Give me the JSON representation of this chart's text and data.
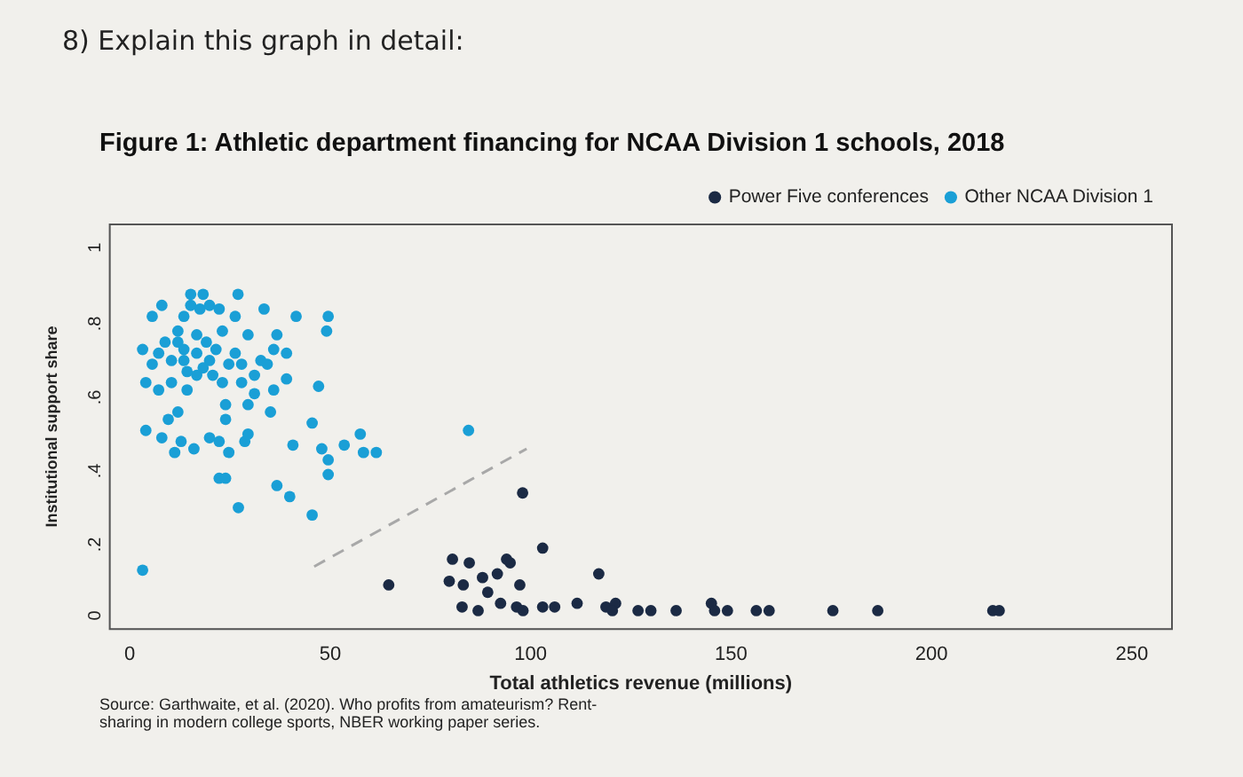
{
  "chart_data": {
    "type": "scatter",
    "title": "Figure 1: Athletic department financing for NCAA Division 1 schools, 2018",
    "xlabel": "Total athletics revenue (millions)",
    "ylabel": "Institutional support share",
    "annotations": [
      "8) Explain this graph in detail:",
      "Source: Garthwaite, et al. (2020). Who profits from amateurism? Rent-sharing in modern college sports, NBER working paper series."
    ],
    "legend": "top right",
    "marker": "circle",
    "xlim": [
      -5,
      260
    ],
    "xticks": [
      0,
      50,
      100,
      150,
      200,
      250
    ],
    "ylim": [
      -0.05,
      1.05
    ],
    "yticks": [
      0,
      {
        "value": 0.2,
        "label": ".2"
      },
      {
        "value": 0.4,
        "label": ".4"
      },
      {
        "value": 0.6,
        "label": ".6"
      },
      {
        "value": 0.8,
        "label": ".8"
      },
      1
    ],
    "series": [
      {
        "name": "Power Five conferences",
        "color": "#1b2a44",
        "x": [
          98,
          64.6,
          103,
          84.7,
          94.9,
          117,
          79.7,
          83.2,
          88,
          91.7,
          97.3,
          89.3,
          82.9,
          86.9,
          92.5,
          96.5,
          98.1,
          103,
          106,
          111.6,
          118.8,
          121.2,
          120.4,
          126.8,
          130,
          136.3,
          145.1,
          145.9,
          149.1,
          156.3,
          159.5,
          175.4,
          186.6,
          215.3,
          216.9,
          80.5,
          94
        ],
        "values": [
          0.32,
          0.07,
          0.17,
          0.13,
          0.13,
          0.1,
          0.08,
          0.07,
          0.09,
          0.1,
          0.07,
          0.05,
          0.01,
          0,
          0.02,
          0.01,
          0,
          0.01,
          0.01,
          0.02,
          0.01,
          0.02,
          0,
          0,
          0,
          0,
          0.02,
          0,
          0,
          0,
          0,
          0,
          0,
          0,
          0,
          0.14,
          0.14
        ]
      },
      {
        "name": "Other NCAA Division 1",
        "color": "#1a9fd6",
        "x": [
          3.2,
          84.5,
          27,
          15.2,
          18.3,
          5.6,
          8,
          33.5,
          41.5,
          49.5,
          49.1,
          3.2,
          5.6,
          4,
          7.2,
          10.4,
          12,
          13.5,
          16.7,
          19.9,
          23.1,
          26.3,
          29.5,
          32.7,
          35.9,
          39.1,
          39.1,
          36.7,
          27.9,
          31.1,
          29.5,
          35.1,
          47.1,
          23.1,
          16.7,
          14.3,
          12,
          9.6,
          4,
          8,
          12.8,
          16,
          11.2,
          19.9,
          22.3,
          24.7,
          28.7,
          29.5,
          23.9,
          23.9,
          22.3,
          23.9,
          27.1,
          36.7,
          39.9,
          45.5,
          40.7,
          45.5,
          47.9,
          49.5,
          49.5,
          53.5,
          57.5,
          58.3,
          61.5,
          12,
          13.5,
          15.2,
          17.5,
          19.9,
          13.5,
          16.7,
          19.1,
          21.5,
          14.3,
          18.3,
          20.7,
          24.7,
          27.9,
          31.1,
          34.3,
          35.9,
          26.3,
          22.3,
          10.4,
          8.8,
          7.2
        ],
        "values": [
          0.11,
          0.49,
          0.86,
          0.86,
          0.86,
          0.8,
          0.83,
          0.82,
          0.8,
          0.8,
          0.76,
          0.71,
          0.67,
          0.62,
          0.6,
          0.62,
          0.73,
          0.68,
          0.75,
          0.68,
          0.76,
          0.7,
          0.75,
          0.68,
          0.71,
          0.7,
          0.63,
          0.75,
          0.62,
          0.59,
          0.56,
          0.54,
          0.61,
          0.62,
          0.64,
          0.6,
          0.54,
          0.52,
          0.49,
          0.47,
          0.46,
          0.44,
          0.43,
          0.47,
          0.46,
          0.43,
          0.46,
          0.48,
          0.52,
          0.56,
          0.36,
          0.36,
          0.28,
          0.34,
          0.31,
          0.26,
          0.45,
          0.51,
          0.44,
          0.41,
          0.37,
          0.45,
          0.48,
          0.43,
          0.43,
          0.76,
          0.8,
          0.83,
          0.82,
          0.83,
          0.71,
          0.7,
          0.73,
          0.71,
          0.65,
          0.66,
          0.64,
          0.67,
          0.67,
          0.64,
          0.67,
          0.6,
          0.8,
          0.82,
          0.68,
          0.73,
          0.7
        ]
      },
      {
        "type": "line",
        "color": "#a8a8a8",
        "line_style": "dashed",
        "marker": "none",
        "x": [
          46,
          99
        ],
        "values": [
          0.12,
          0.44
        ]
      }
    ]
  }
}
